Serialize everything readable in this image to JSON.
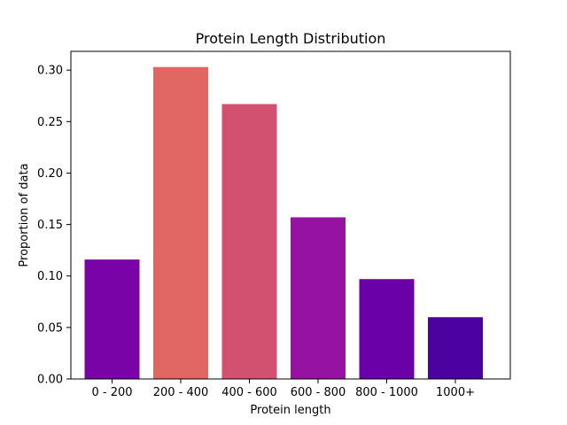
{
  "chart_data": {
    "type": "bar",
    "title": "Protein Length Distribution",
    "xlabel": "Protein length",
    "ylabel": "Proportion of data",
    "categories": [
      "0 - 200",
      "200 - 400",
      "400 - 600",
      "600 - 800",
      "800 - 1000",
      "1000+"
    ],
    "values": [
      0.116,
      0.303,
      0.267,
      0.157,
      0.097,
      0.06
    ],
    "colors": [
      "#7a03a8",
      "#e16862",
      "#d25070",
      "#9612a1",
      "#6a00a8",
      "#4c02a1"
    ],
    "ylim": [
      0,
      0.3182
    ],
    "yticks": [
      "0.00",
      "0.05",
      "0.10",
      "0.15",
      "0.20",
      "0.25",
      "0.30"
    ],
    "ytick_values": [
      0,
      0.05,
      0.1,
      0.15,
      0.2,
      0.25,
      0.3
    ],
    "grid": false,
    "legend": "none"
  }
}
